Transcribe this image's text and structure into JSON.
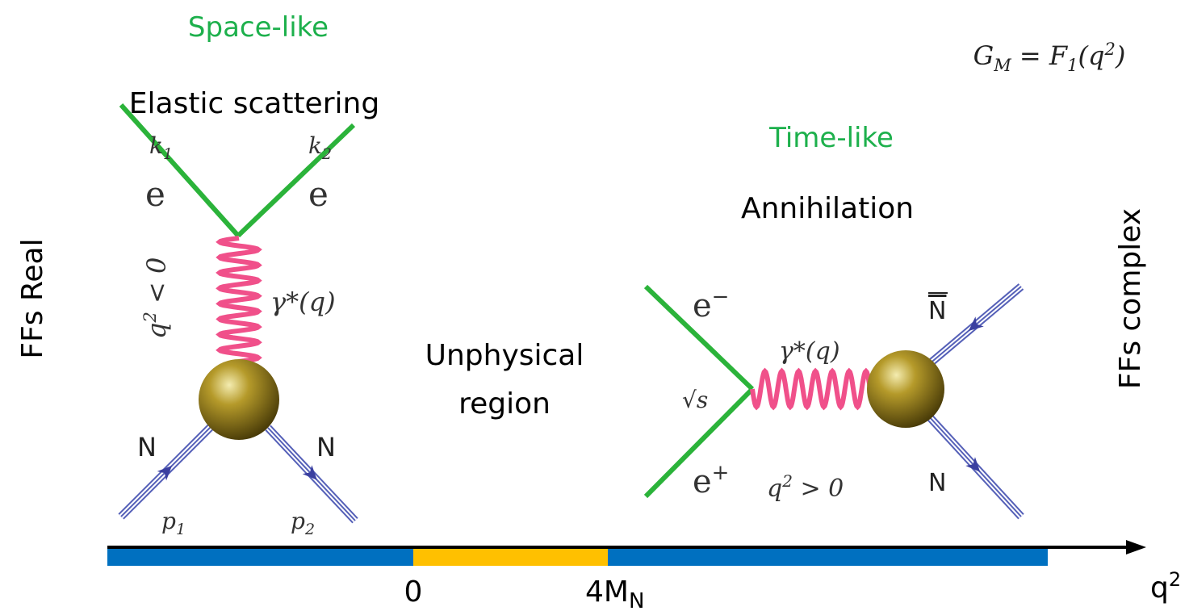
{
  "space_like": {
    "title": "Space-like",
    "process": "Elastic scattering",
    "labels": {
      "k1": [
        "k",
        "1"
      ],
      "k2": [
        "k",
        "2"
      ],
      "e_in": "e",
      "e_out": "e",
      "q2": [
        "q",
        "2",
        " < 0"
      ],
      "photon": "γ*(q)",
      "n_in": "N",
      "n_out": "N",
      "p1": [
        "p",
        "1"
      ],
      "p2": [
        "p",
        "2"
      ]
    }
  },
  "time_like": {
    "title": "Time-like",
    "process": "Annihilation",
    "labels": {
      "e_minus": [
        "e",
        "−"
      ],
      "e_plus": [
        "e",
        "+"
      ],
      "sqrt_s": "√s",
      "photon": "γ*(q)",
      "q2": [
        "q",
        "2",
        " > 0"
      ],
      "n_bar": "N",
      "n": "N"
    }
  },
  "unphysical": [
    "Unphysical",
    "region"
  ],
  "formula": [
    "G",
    "M",
    " = F",
    "1",
    "(q",
    "2",
    ")"
  ],
  "left_note": "FFs Real",
  "right_note": "FFs complex",
  "axis": {
    "zero": "0",
    "threshold": [
      "4M",
      "N"
    ],
    "variable": [
      "q",
      "2"
    ]
  }
}
